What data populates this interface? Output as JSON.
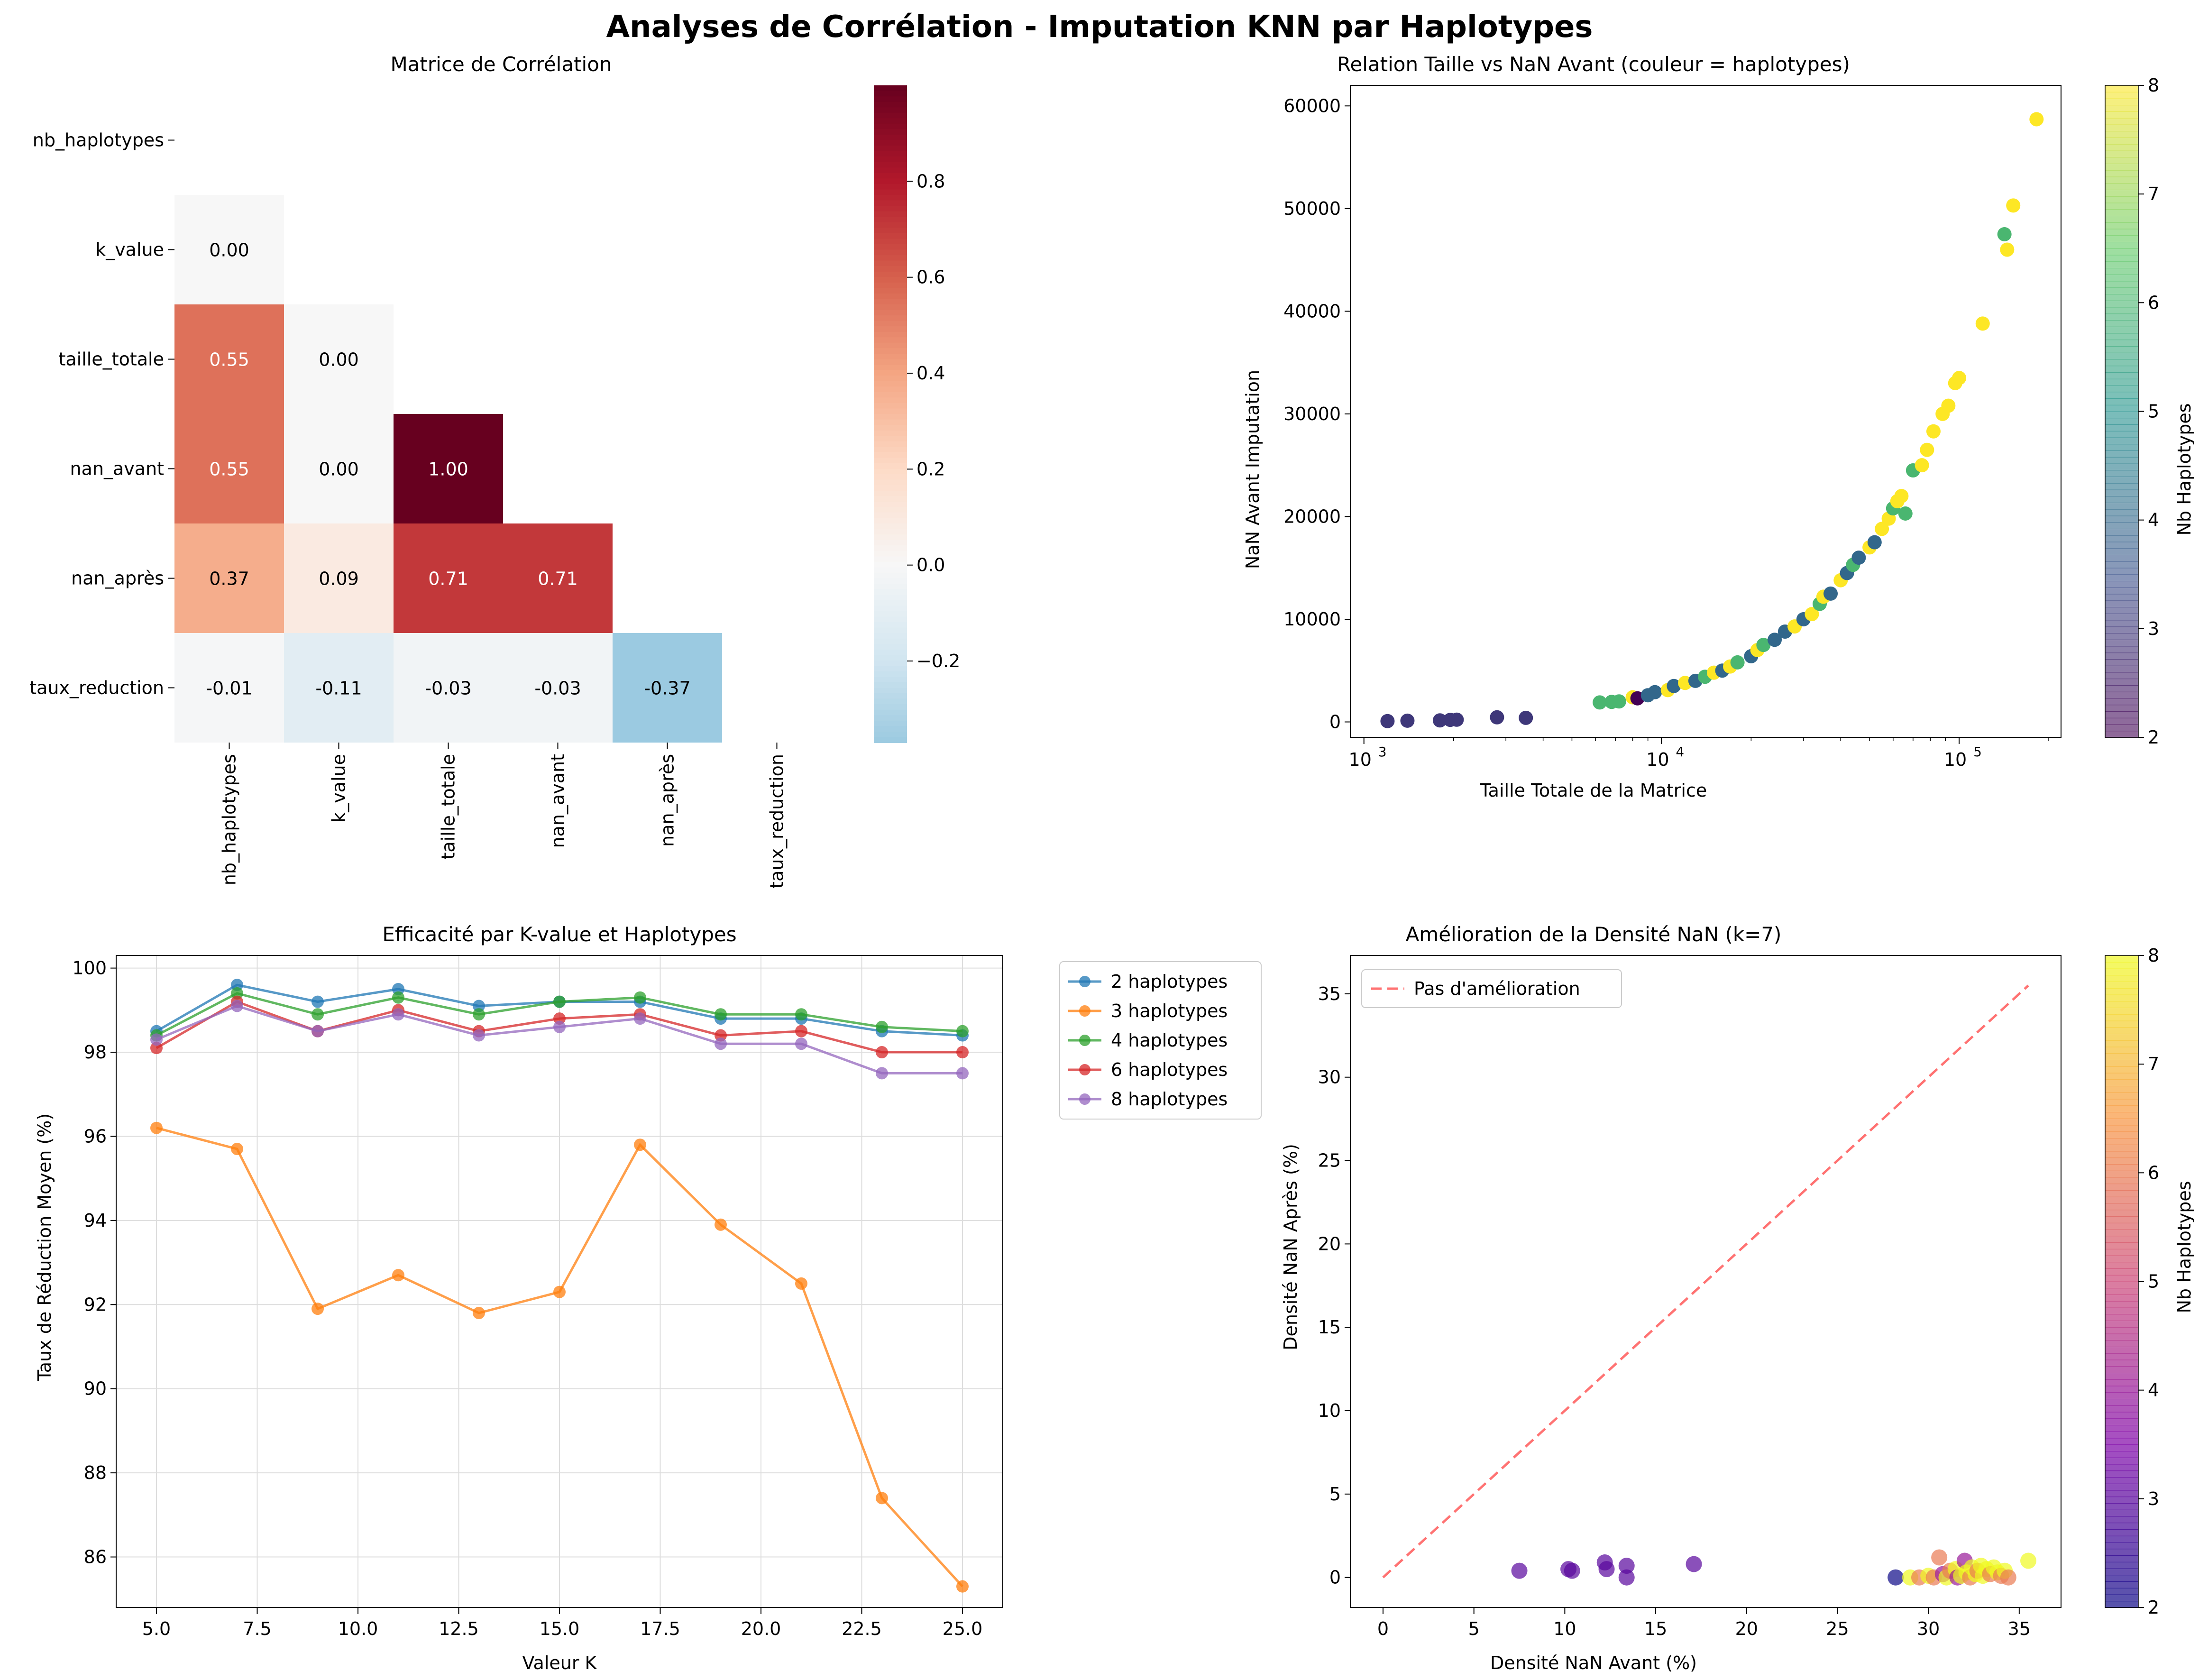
{
  "figure": {
    "suptitle": "Analyses de Corrélation - Imputation KNN par Haplotypes"
  },
  "chart_data": [
    {
      "type": "heatmap",
      "title": "Matrice de Corrélation",
      "row_labels": [
        "nb_haplotypes",
        "k_value",
        "taille_totale",
        "nan_avant",
        "nan_après",
        "taux_reduction"
      ],
      "col_labels": [
        "nb_haplotypes",
        "k_value",
        "taille_totale",
        "nan_avant",
        "nan_après",
        "taux_reduction"
      ],
      "mask": "upper-triangle-and-diagonal",
      "values": [
        [
          null,
          null,
          null,
          null,
          null,
          null
        ],
        [
          0.0,
          null,
          null,
          null,
          null,
          null
        ],
        [
          0.55,
          0.0,
          null,
          null,
          null,
          null
        ],
        [
          0.55,
          0.0,
          1.0,
          null,
          null,
          null
        ],
        [
          0.37,
          0.09,
          0.71,
          0.71,
          null,
          null
        ],
        [
          -0.01,
          -0.11,
          -0.03,
          -0.03,
          -0.37,
          null
        ]
      ],
      "colormap": "RdBu_r",
      "colorbar": {
        "ticks": [
          "0.8",
          "0.6",
          "0.4",
          "0.2",
          "0.0",
          "−0.2"
        ],
        "range": [
          -0.37,
          1.0
        ]
      }
    },
    {
      "type": "scatter",
      "title": "Relation Taille vs NaN Avant (couleur = haplotypes)",
      "xlabel": "Taille Totale de la Matrice",
      "ylabel": "NaN Avant Imputation",
      "xscale": "log",
      "xlim": [
        900,
        220000
      ],
      "ylim": [
        -1500,
        62000
      ],
      "xticks": [
        {
          "v": 1000,
          "b": "10",
          "e": "3"
        },
        {
          "v": 10000,
          "b": "10",
          "e": "4"
        },
        {
          "v": 100000,
          "b": "10",
          "e": "5"
        }
      ],
      "yticks": [
        "0",
        "10000",
        "20000",
        "30000",
        "40000",
        "50000",
        "60000"
      ],
      "colorbar": {
        "label": "Nb Haplotypes",
        "ticks": [
          "2",
          "3",
          "4",
          "5",
          "6",
          "7",
          "8"
        ],
        "range": [
          2,
          8
        ],
        "colormap": "viridis"
      },
      "points": [
        [
          1200,
          80,
          3
        ],
        [
          1400,
          120,
          3
        ],
        [
          1800,
          150,
          3
        ],
        [
          1950,
          200,
          3
        ],
        [
          2050,
          220,
          3
        ],
        [
          2800,
          450,
          3
        ],
        [
          3500,
          400,
          3
        ],
        [
          6200,
          1900,
          6
        ],
        [
          6800,
          1950,
          6
        ],
        [
          7200,
          2000,
          6
        ],
        [
          8000,
          2400,
          8
        ],
        [
          8300,
          2300,
          2
        ],
        [
          9000,
          2600,
          4
        ],
        [
          9500,
          2900,
          4
        ],
        [
          10500,
          3100,
          8
        ],
        [
          11000,
          3500,
          4
        ],
        [
          12000,
          3800,
          8
        ],
        [
          13000,
          4000,
          4
        ],
        [
          14000,
          4400,
          6
        ],
        [
          15000,
          4800,
          8
        ],
        [
          16000,
          5000,
          4
        ],
        [
          17000,
          5400,
          8
        ],
        [
          18000,
          5800,
          6
        ],
        [
          20000,
          6400,
          4
        ],
        [
          21000,
          7000,
          8
        ],
        [
          22000,
          7500,
          6
        ],
        [
          24000,
          8000,
          4
        ],
        [
          26000,
          8800,
          4
        ],
        [
          28000,
          9300,
          8
        ],
        [
          30000,
          10000,
          4
        ],
        [
          32000,
          10500,
          8
        ],
        [
          34000,
          11500,
          6
        ],
        [
          35000,
          12200,
          8
        ],
        [
          37000,
          12500,
          4
        ],
        [
          40000,
          13800,
          8
        ],
        [
          42000,
          14500,
          4
        ],
        [
          44000,
          15300,
          6
        ],
        [
          46000,
          16000,
          4
        ],
        [
          50000,
          17000,
          8
        ],
        [
          52000,
          17500,
          4
        ],
        [
          55000,
          18800,
          8
        ],
        [
          58000,
          19800,
          8
        ],
        [
          60000,
          20800,
          6
        ],
        [
          62000,
          21500,
          8
        ],
        [
          64000,
          22000,
          8
        ],
        [
          66000,
          20300,
          6
        ],
        [
          70000,
          24500,
          6
        ],
        [
          75000,
          25000,
          8
        ],
        [
          78000,
          26500,
          8
        ],
        [
          82000,
          28300,
          8
        ],
        [
          88000,
          30000,
          8
        ],
        [
          92000,
          30800,
          8
        ],
        [
          97000,
          33000,
          8
        ],
        [
          100000,
          33500,
          8
        ],
        [
          120000,
          38800,
          8
        ],
        [
          142000,
          47500,
          6
        ],
        [
          145000,
          46000,
          8
        ],
        [
          152000,
          50300,
          8
        ],
        [
          182000,
          58700,
          8
        ]
      ]
    },
    {
      "type": "line",
      "title": "Efficacité par K-value et Haplotypes",
      "xlabel": "Valeur K",
      "ylabel": "Taux de Réduction Moyen (%)",
      "xlim": [
        4.0,
        26.0
      ],
      "ylim": [
        84.8,
        100.3
      ],
      "xticks": [
        "5.0",
        "7.5",
        "10.0",
        "12.5",
        "15.0",
        "17.5",
        "20.0",
        "22.5",
        "25.0"
      ],
      "yticks": [
        "86",
        "88",
        "90",
        "92",
        "94",
        "96",
        "98",
        "100"
      ],
      "legend": "outside-right",
      "x": [
        5,
        7,
        9,
        11,
        13,
        15,
        17,
        19,
        21,
        23,
        25
      ],
      "series": [
        {
          "name": "2 haplotypes",
          "color": "#1f77b4",
          "values": [
            98.5,
            99.6,
            99.2,
            99.5,
            99.1,
            99.2,
            99.2,
            98.8,
            98.8,
            98.5,
            98.4
          ]
        },
        {
          "name": "3 haplotypes",
          "color": "#ff7f0e",
          "values": [
            96.2,
            95.7,
            91.9,
            92.7,
            91.8,
            92.3,
            95.8,
            93.9,
            92.5,
            87.4,
            85.3
          ]
        },
        {
          "name": "4 haplotypes",
          "color": "#2ca02c",
          "values": [
            98.4,
            99.4,
            98.9,
            99.3,
            98.9,
            99.2,
            99.3,
            98.9,
            98.9,
            98.6,
            98.5
          ]
        },
        {
          "name": "6 haplotypes",
          "color": "#d62728",
          "values": [
            98.1,
            99.2,
            98.5,
            99.0,
            98.5,
            98.8,
            98.9,
            98.4,
            98.5,
            98.0,
            98.0
          ]
        },
        {
          "name": "8 haplotypes",
          "color": "#9467bd",
          "values": [
            98.3,
            99.1,
            98.5,
            98.9,
            98.4,
            98.6,
            98.8,
            98.2,
            98.2,
            97.5,
            97.5
          ]
        }
      ]
    },
    {
      "type": "scatter",
      "title": "Amélioration de la Densité NaN (k=7)",
      "xlabel": "Densité NaN Avant (%)",
      "ylabel": "Densité NaN Après (%)",
      "xlim": [
        -1.8,
        37.3
      ],
      "ylim": [
        -1.8,
        37.3
      ],
      "xticks": [
        "0",
        "5",
        "10",
        "15",
        "20",
        "25",
        "30",
        "35"
      ],
      "yticks": [
        "0",
        "5",
        "10",
        "15",
        "20",
        "25",
        "30",
        "35"
      ],
      "reference_line": {
        "label": "Pas d'amélioration",
        "from": [
          0,
          0
        ],
        "to": [
          35.5,
          35.5
        ],
        "color": "#ff4444"
      },
      "colorbar": {
        "label": "Nb Haplotypes",
        "ticks": [
          "2",
          "3",
          "4",
          "5",
          "6",
          "7",
          "8"
        ],
        "range": [
          2,
          8
        ],
        "colormap": "plasma"
      },
      "points": [
        [
          7.5,
          0.4,
          3
        ],
        [
          10.2,
          0.5,
          3
        ],
        [
          10.4,
          0.4,
          3
        ],
        [
          12.2,
          0.9,
          3
        ],
        [
          12.3,
          0.5,
          3
        ],
        [
          13.4,
          0.7,
          3
        ],
        [
          13.4,
          0.0,
          3
        ],
        [
          17.1,
          0.8,
          3
        ],
        [
          28.2,
          0.0,
          2
        ],
        [
          29.0,
          0.0,
          8
        ],
        [
          29.5,
          0.0,
          6
        ],
        [
          30.0,
          0.1,
          8
        ],
        [
          30.3,
          0.0,
          6
        ],
        [
          30.6,
          1.2,
          6
        ],
        [
          30.8,
          0.2,
          4
        ],
        [
          31.0,
          0.0,
          8
        ],
        [
          31.2,
          0.4,
          6
        ],
        [
          31.5,
          0.5,
          8
        ],
        [
          31.6,
          0.0,
          4
        ],
        [
          31.8,
          0.1,
          8
        ],
        [
          32.0,
          1.0,
          4
        ],
        [
          32.1,
          0.3,
          8
        ],
        [
          32.3,
          0.0,
          6
        ],
        [
          32.4,
          0.6,
          8
        ],
        [
          32.6,
          0.2,
          8
        ],
        [
          32.7,
          0.4,
          6
        ],
        [
          32.9,
          0.7,
          8
        ],
        [
          33.0,
          0.1,
          8
        ],
        [
          33.2,
          0.5,
          8
        ],
        [
          33.4,
          0.2,
          6
        ],
        [
          33.6,
          0.6,
          8
        ],
        [
          33.8,
          0.3,
          8
        ],
        [
          34.0,
          0.1,
          6
        ],
        [
          34.2,
          0.4,
          8
        ],
        [
          34.4,
          0.0,
          6
        ],
        [
          35.5,
          1.0,
          8
        ]
      ]
    }
  ]
}
